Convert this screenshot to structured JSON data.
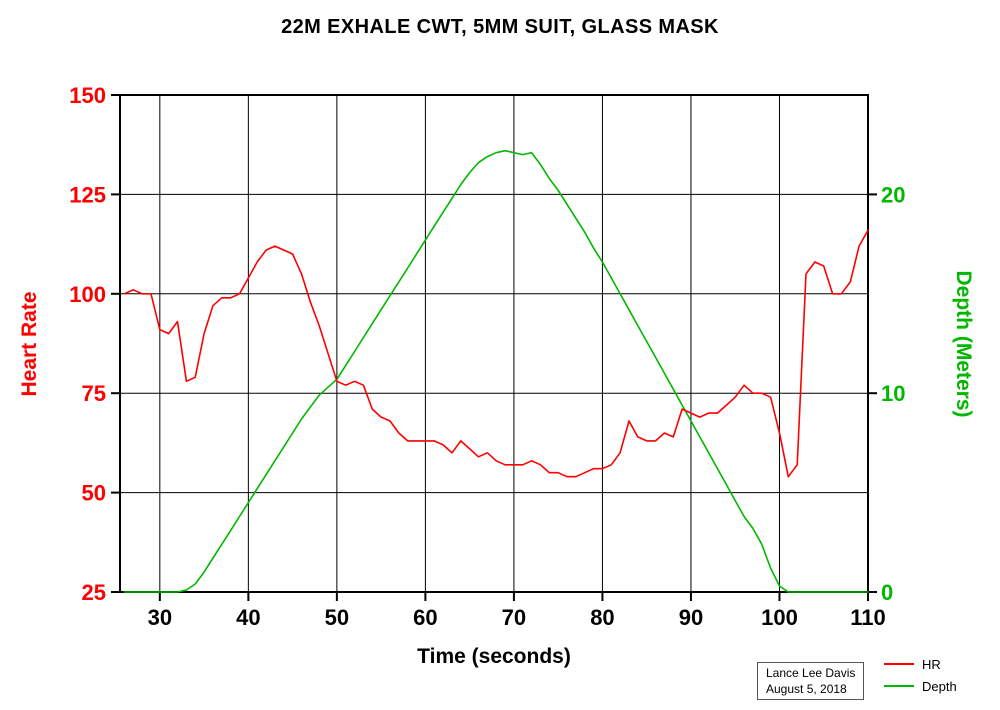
{
  "title": "22M EXHALE CWT, 5MM SUIT, GLASS MASK",
  "axes": {
    "left_label": "Heart Rate",
    "right_label": "Depth (Meters)",
    "x_label": "Time (seconds)"
  },
  "colors": {
    "hr": "#ff0000",
    "depth": "#00b800",
    "grid": "#000000",
    "frame": "#000000",
    "x_tick_label": "#000000"
  },
  "legend": [
    {
      "label": "HR",
      "color": "#ff0000"
    },
    {
      "label": "Depth",
      "color": "#00b800"
    }
  ],
  "attribution": {
    "line1": "Lance Lee  Davis",
    "line2": "August 5, 2018"
  },
  "chart_data": {
    "type": "line",
    "title": "22M EXHALE CWT, 5MM SUIT, GLASS MASK",
    "xlabel": "Time (seconds)",
    "ylabel_left": "Heart Rate",
    "ylabel_right": "Depth (Meters)",
    "grid": true,
    "legend_position": "bottom-right",
    "x_range": [
      25.5,
      110
    ],
    "y_left_range": [
      25,
      150
    ],
    "y_right_range": [
      0,
      25
    ],
    "x_ticks": [
      30,
      40,
      50,
      60,
      70,
      80,
      90,
      100,
      110
    ],
    "y_left_ticks": [
      25,
      50,
      75,
      100,
      125,
      150
    ],
    "y_right_ticks": [
      0,
      10,
      20
    ],
    "x": [
      26,
      27,
      28,
      29,
      30,
      31,
      32,
      33,
      34,
      35,
      36,
      37,
      38,
      39,
      40,
      41,
      42,
      43,
      44,
      45,
      46,
      47,
      48,
      49,
      50,
      51,
      52,
      53,
      54,
      55,
      56,
      57,
      58,
      59,
      60,
      61,
      62,
      63,
      64,
      65,
      66,
      67,
      68,
      69,
      70,
      71,
      72,
      73,
      74,
      75,
      76,
      77,
      78,
      79,
      80,
      81,
      82,
      83,
      84,
      85,
      86,
      87,
      88,
      89,
      90,
      91,
      92,
      93,
      94,
      95,
      96,
      97,
      98,
      99,
      100,
      101,
      102,
      103,
      104,
      105,
      106,
      107,
      108,
      109,
      110
    ],
    "series": [
      {
        "name": "HR",
        "axis": "left",
        "color": "#ff0000",
        "values": [
          100,
          101,
          100,
          100,
          91,
          90,
          93,
          78,
          79,
          90,
          97,
          99,
          99,
          100,
          104,
          108,
          111,
          112,
          111,
          110,
          105,
          98,
          92,
          85,
          78,
          77,
          78,
          77,
          71,
          69,
          68,
          65,
          63,
          63,
          63,
          63,
          62,
          60,
          63,
          61,
          59,
          60,
          58,
          57,
          57,
          57,
          58,
          57,
          55,
          55,
          54,
          54,
          55,
          56,
          56,
          57,
          60,
          68,
          64,
          63,
          63,
          65,
          64,
          71,
          70,
          69,
          70,
          70,
          72,
          74,
          77,
          75,
          75,
          74,
          65,
          54,
          57,
          105,
          108,
          107,
          100,
          100,
          103,
          112,
          116
        ]
      },
      {
        "name": "Depth",
        "axis": "right",
        "color": "#00b800",
        "values": [
          0,
          0,
          0,
          0,
          0,
          0,
          0,
          0.1,
          0.4,
          1.0,
          1.7,
          2.4,
          3.1,
          3.8,
          4.5,
          5.2,
          5.9,
          6.6,
          7.3,
          8.0,
          8.7,
          9.3,
          9.9,
          10.3,
          10.7,
          11.4,
          12.1,
          12.8,
          13.5,
          14.2,
          14.9,
          15.6,
          16.3,
          17.0,
          17.7,
          18.4,
          19.1,
          19.8,
          20.5,
          21.1,
          21.6,
          21.9,
          22.1,
          22.2,
          22.1,
          22.0,
          22.1,
          21.5,
          20.8,
          20.2,
          19.5,
          18.8,
          18.1,
          17.3,
          16.6,
          15.8,
          15.0,
          14.2,
          13.4,
          12.6,
          11.8,
          11.0,
          10.2,
          9.4,
          8.6,
          7.8,
          7.0,
          6.2,
          5.4,
          4.6,
          3.8,
          3.2,
          2.4,
          1.2,
          0.3,
          0,
          0,
          0,
          0,
          0,
          0,
          0,
          0,
          0,
          0
        ]
      }
    ]
  }
}
